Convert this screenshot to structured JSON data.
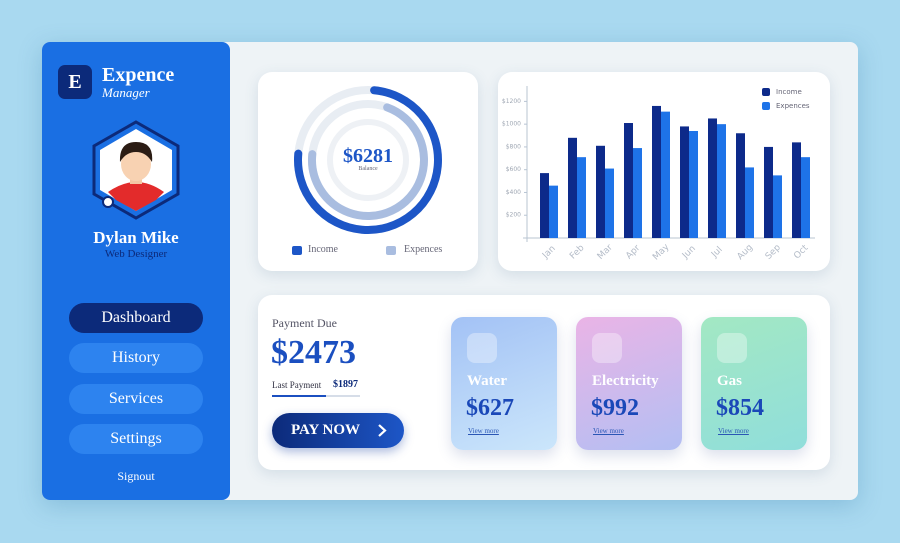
{
  "sidebar": {
    "logo_letter": "E",
    "title": "Expence",
    "subtitle": "Manager",
    "user_name": "Dylan Mike",
    "user_role": "Web Designer",
    "menu": [
      "Dashboard",
      "History",
      "Services",
      "Settings"
    ],
    "signout": "Signout"
  },
  "balance": {
    "amount": "$6281",
    "label": "Balance",
    "legend": [
      "Income",
      "Expences"
    ]
  },
  "chart_data": {
    "type": "bar",
    "categories": [
      "Jan",
      "Feb",
      "Mar",
      "Apr",
      "May",
      "Jun",
      "Jul",
      "Aug",
      "Sep",
      "Oct"
    ],
    "series": [
      {
        "name": "Income",
        "color": "#0d2a8a",
        "values": [
          570,
          880,
          810,
          1010,
          1160,
          980,
          1050,
          920,
          800,
          840
        ]
      },
      {
        "name": "Expences",
        "color": "#1e73e8",
        "values": [
          460,
          710,
          610,
          790,
          1110,
          940,
          1000,
          620,
          550,
          710
        ]
      }
    ],
    "ylim": [
      0,
      1300
    ],
    "yticks": [
      {
        "value": 200,
        "label": "$200"
      },
      {
        "value": 400,
        "label": "$400"
      },
      {
        "value": 600,
        "label": "$600"
      },
      {
        "value": 800,
        "label": "$800"
      },
      {
        "value": 1000,
        "label": "$1000"
      },
      {
        "value": 1200,
        "label": "$1200"
      }
    ],
    "legend": "upper right"
  },
  "payment": {
    "title": "Payment Due",
    "amount": "$2473",
    "last_label": "Last Payment",
    "last_amount": "$1897",
    "button": "PAY NOW"
  },
  "bills": [
    {
      "name": "Water",
      "amount": "$627",
      "link": "View more"
    },
    {
      "name": "Electricity",
      "amount": "$992",
      "link": "View more"
    },
    {
      "name": "Gas",
      "amount": "$854",
      "link": "View more"
    }
  ]
}
